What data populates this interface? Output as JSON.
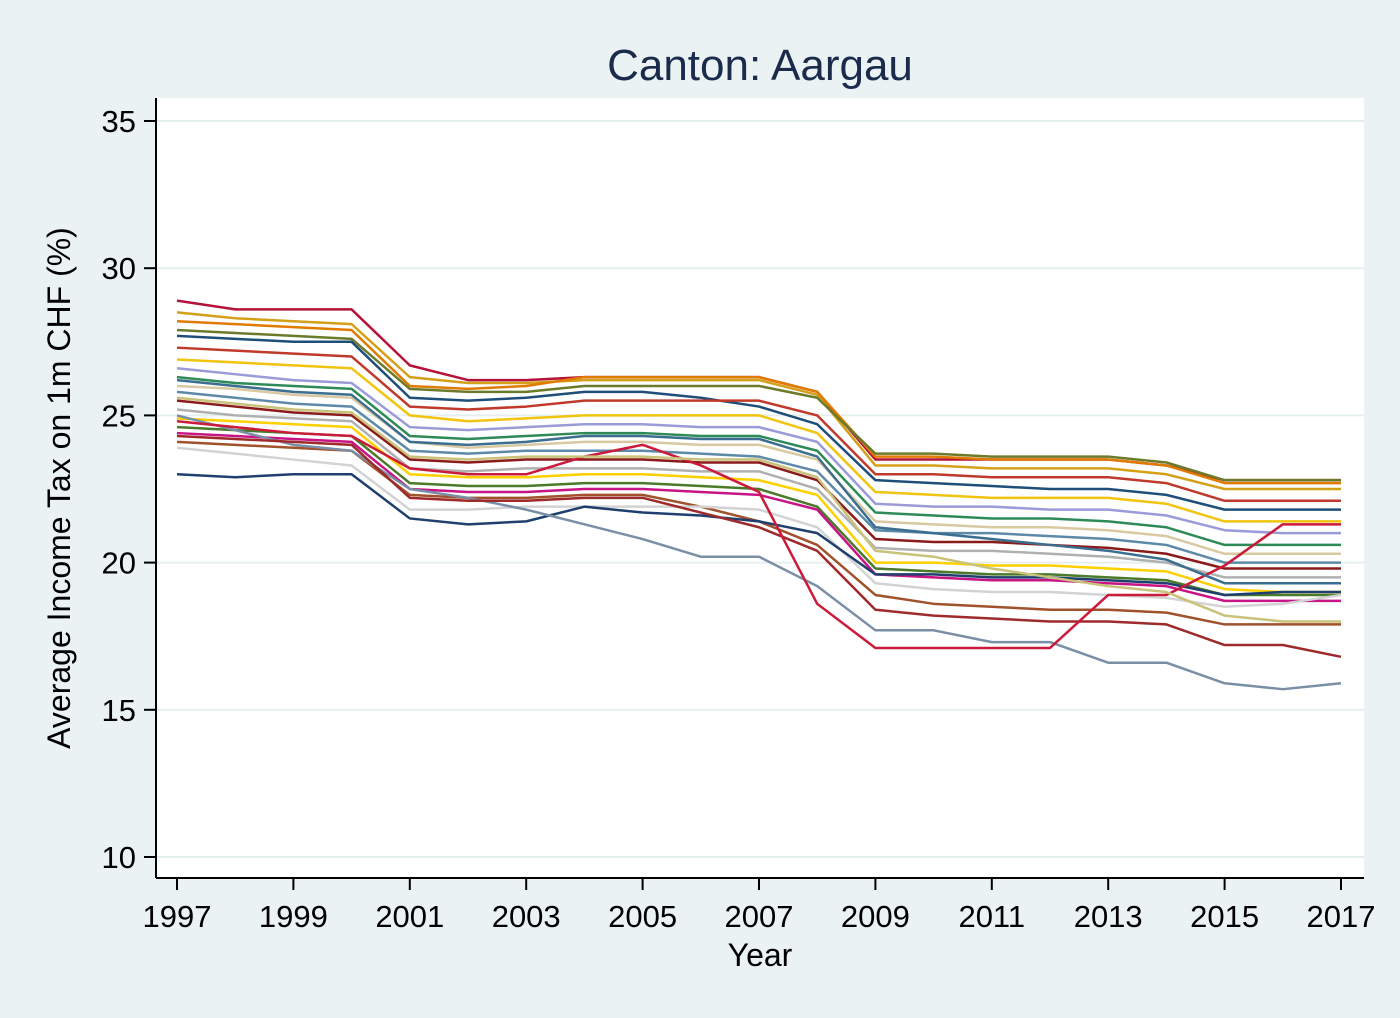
{
  "chart_data": {
    "type": "line",
    "title": "Canton: Aargau",
    "xlabel": "Year",
    "ylabel": "Average Income Tax on 1m CHF (%)",
    "xlim": [
      1997,
      2017
    ],
    "ylim": [
      10,
      35
    ],
    "x_ticks": [
      "1997",
      "1999",
      "2001",
      "2003",
      "2005",
      "2007",
      "2009",
      "2011",
      "2013",
      "2015",
      "2017"
    ],
    "y_ticks": [
      "10",
      "15",
      "20",
      "25",
      "30",
      "35"
    ],
    "grid": true,
    "legend": "none",
    "x": [
      1997,
      1998,
      1999,
      2000,
      2001,
      2002,
      2003,
      2004,
      2005,
      2006,
      2007,
      2008,
      2009,
      2010,
      2011,
      2012,
      2013,
      2014,
      2015,
      2016,
      2017
    ],
    "series_note_count": 24,
    "series": [
      {
        "color": "#b5123a",
        "values": [
          28.9,
          28.6,
          28.6,
          28.6,
          26.7,
          26.2,
          26.2,
          26.3,
          26.3,
          26.3,
          26.3,
          25.8,
          23.5,
          23.5,
          23.5,
          23.5,
          23.5,
          23.3,
          22.8,
          22.8,
          22.8
        ]
      },
      {
        "color": "#d4a017",
        "values": [
          28.5,
          28.3,
          28.2,
          28.1,
          26.3,
          26.1,
          26.1,
          26.2,
          26.2,
          26.2,
          26.2,
          25.7,
          23.3,
          23.3,
          23.2,
          23.2,
          23.2,
          23.0,
          22.5,
          22.5,
          22.5
        ]
      },
      {
        "color": "#e07b00",
        "values": [
          28.2,
          28.1,
          28.0,
          27.9,
          26.0,
          25.9,
          26.0,
          26.3,
          26.3,
          26.3,
          26.3,
          25.8,
          23.6,
          23.6,
          23.5,
          23.5,
          23.5,
          23.3,
          22.7,
          22.7,
          22.7
        ]
      },
      {
        "color": "#6b7b2a",
        "values": [
          27.9,
          27.8,
          27.7,
          27.6,
          25.9,
          25.8,
          25.8,
          26.0,
          26.0,
          26.0,
          26.0,
          25.6,
          23.7,
          23.7,
          23.6,
          23.6,
          23.6,
          23.4,
          22.8,
          22.8,
          22.8
        ]
      },
      {
        "color": "#1f4e79",
        "values": [
          27.7,
          27.6,
          27.5,
          27.5,
          25.6,
          25.5,
          25.6,
          25.8,
          25.8,
          25.6,
          25.3,
          24.7,
          22.8,
          22.7,
          22.6,
          22.5,
          22.5,
          22.3,
          21.8,
          21.8,
          21.8
        ]
      },
      {
        "color": "#c0392b",
        "values": [
          27.3,
          27.2,
          27.1,
          27.0,
          25.3,
          25.2,
          25.3,
          25.5,
          25.5,
          25.5,
          25.5,
          25.0,
          23.0,
          23.0,
          22.9,
          22.9,
          22.9,
          22.7,
          22.1,
          22.1,
          22.1
        ]
      },
      {
        "color": "#f1c40f",
        "values": [
          26.9,
          26.8,
          26.7,
          26.6,
          25.0,
          24.8,
          24.9,
          25.0,
          25.0,
          25.0,
          25.0,
          24.4,
          22.4,
          22.3,
          22.2,
          22.2,
          22.2,
          22.0,
          21.4,
          21.4,
          21.4
        ]
      },
      {
        "color": "#9b9bd9",
        "values": [
          26.6,
          26.4,
          26.2,
          26.1,
          24.6,
          24.5,
          24.6,
          24.7,
          24.7,
          24.6,
          24.6,
          24.1,
          22.0,
          21.9,
          21.9,
          21.8,
          21.8,
          21.6,
          21.1,
          21.0,
          21.0
        ]
      },
      {
        "color": "#2e8b57",
        "values": [
          26.3,
          26.1,
          26.0,
          25.9,
          24.3,
          24.2,
          24.3,
          24.4,
          24.4,
          24.3,
          24.3,
          23.8,
          21.7,
          21.6,
          21.5,
          21.5,
          21.4,
          21.2,
          20.6,
          20.6,
          20.6
        ]
      },
      {
        "color": "#d9c9a3",
        "values": [
          26.0,
          25.9,
          25.7,
          25.6,
          24.1,
          23.9,
          24.0,
          24.1,
          24.1,
          24.0,
          24.0,
          23.5,
          21.4,
          21.3,
          21.2,
          21.2,
          21.1,
          20.9,
          20.3,
          20.3,
          20.3
        ]
      },
      {
        "color": "#5d8aa8",
        "values": [
          25.8,
          25.6,
          25.4,
          25.3,
          23.8,
          23.7,
          23.8,
          23.8,
          23.8,
          23.7,
          23.6,
          23.1,
          21.1,
          21.0,
          21.0,
          20.9,
          20.8,
          20.6,
          20.0,
          20.0,
          20.0
        ]
      },
      {
        "color": "#8b1a1a",
        "values": [
          25.5,
          25.3,
          25.1,
          25.0,
          23.5,
          23.4,
          23.5,
          23.5,
          23.5,
          23.4,
          23.4,
          22.8,
          20.8,
          20.7,
          20.7,
          20.6,
          20.5,
          20.3,
          19.8,
          19.8,
          19.8
        ]
      },
      {
        "color": "#b0b0b0",
        "values": [
          25.2,
          25.0,
          24.9,
          24.8,
          23.2,
          23.1,
          23.2,
          23.2,
          23.2,
          23.1,
          23.1,
          22.5,
          20.5,
          20.4,
          20.4,
          20.3,
          20.2,
          20.0,
          19.5,
          19.5,
          19.5
        ]
      },
      {
        "color": "#ffd000",
        "values": [
          24.9,
          24.8,
          24.7,
          24.6,
          23.0,
          22.9,
          22.9,
          23.0,
          23.0,
          22.9,
          22.8,
          22.3,
          20.0,
          20.0,
          19.9,
          19.9,
          19.8,
          19.7,
          19.1,
          19.0,
          19.0
        ]
      },
      {
        "color": "#4a7a2a",
        "values": [
          24.6,
          24.5,
          24.4,
          24.3,
          22.7,
          22.6,
          22.6,
          22.7,
          22.7,
          22.6,
          22.5,
          21.9,
          19.8,
          19.7,
          19.6,
          19.6,
          19.5,
          19.4,
          18.9,
          18.9,
          18.9
        ]
      },
      {
        "color": "#c71585",
        "values": [
          24.4,
          24.3,
          24.2,
          24.1,
          22.5,
          22.4,
          22.4,
          22.5,
          22.5,
          22.4,
          22.3,
          21.8,
          19.6,
          19.5,
          19.4,
          19.4,
          19.3,
          19.2,
          18.7,
          18.7,
          18.7
        ]
      },
      {
        "color": "#a0522d",
        "values": [
          24.1,
          24.0,
          23.9,
          23.8,
          22.3,
          22.2,
          22.2,
          22.3,
          22.3,
          21.9,
          21.4,
          20.6,
          18.9,
          18.6,
          18.5,
          18.4,
          18.4,
          18.3,
          17.9,
          17.9,
          17.9
        ]
      },
      {
        "color": "#d3d3d3",
        "values": [
          23.9,
          23.7,
          23.5,
          23.3,
          21.8,
          21.8,
          21.9,
          21.9,
          21.9,
          21.9,
          21.8,
          21.2,
          19.3,
          19.1,
          19.0,
          19.0,
          18.9,
          18.8,
          18.5,
          18.6,
          18.9
        ]
      },
      {
        "color": "#1f3f6e",
        "values": [
          23.0,
          22.9,
          23.0,
          23.0,
          21.5,
          21.3,
          21.4,
          21.9,
          21.7,
          21.6,
          21.4,
          21.0,
          19.6,
          19.6,
          19.5,
          19.5,
          19.4,
          19.3,
          18.9,
          19.0,
          19.0
        ]
      },
      {
        "color": "#7a8fa6",
        "values": [
          25.0,
          24.5,
          24.0,
          23.8,
          22.5,
          22.2,
          21.8,
          21.3,
          20.8,
          20.2,
          20.2,
          19.2,
          17.7,
          17.7,
          17.3,
          17.3,
          16.6,
          16.6,
          15.9,
          15.7,
          15.9
        ]
      },
      {
        "color": "#9e2a2b",
        "values": [
          24.3,
          24.2,
          24.1,
          24.0,
          22.2,
          22.1,
          22.1,
          22.2,
          22.2,
          21.7,
          21.2,
          20.4,
          18.4,
          18.2,
          18.1,
          18.0,
          18.0,
          17.9,
          17.2,
          17.2,
          16.8
        ]
      },
      {
        "color": "#cc1a3a",
        "values": [
          24.8,
          24.6,
          24.4,
          24.3,
          23.2,
          23.0,
          23.0,
          23.6,
          24.0,
          23.3,
          22.4,
          18.6,
          17.1,
          17.1,
          17.1,
          17.1,
          18.9,
          18.9,
          19.9,
          21.3,
          21.3
        ]
      },
      {
        "color": "#c8c27a",
        "values": [
          25.6,
          25.4,
          25.2,
          25.1,
          23.6,
          23.5,
          23.6,
          23.6,
          23.6,
          23.5,
          23.5,
          22.9,
          20.4,
          20.2,
          19.8,
          19.5,
          19.2,
          19.0,
          18.2,
          18.0,
          18.0
        ]
      },
      {
        "color": "#3b6e8f",
        "values": [
          26.2,
          26.0,
          25.8,
          25.7,
          24.1,
          24.0,
          24.1,
          24.3,
          24.3,
          24.2,
          24.2,
          23.6,
          21.2,
          21.0,
          20.8,
          20.6,
          20.4,
          20.1,
          19.3,
          19.3,
          19.3
        ]
      }
    ]
  }
}
